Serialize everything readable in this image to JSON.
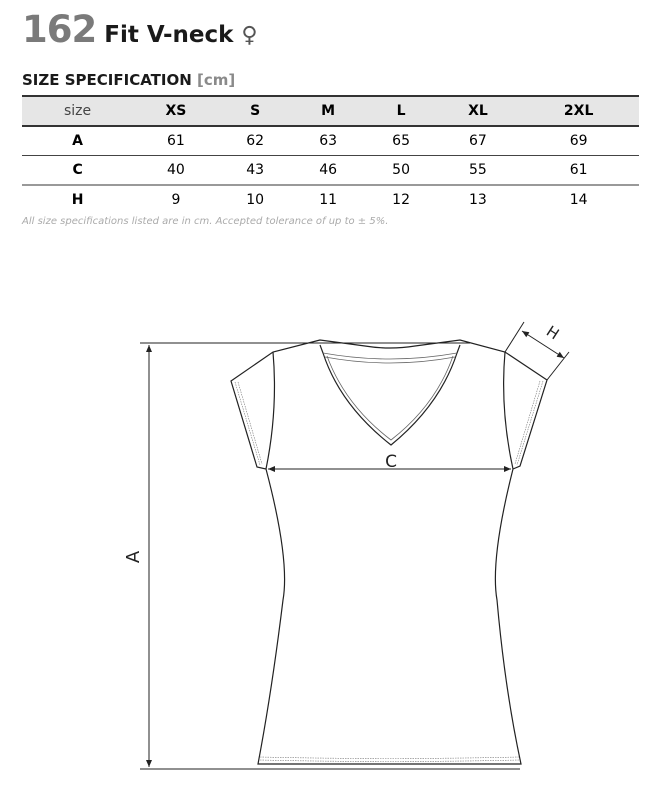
{
  "header": {
    "number": "162",
    "name": "Fit V-neck",
    "gender_symbol": "♀"
  },
  "spec": {
    "title": "SIZE SPECIFICATION",
    "unit": "[cm]"
  },
  "table": {
    "columns": [
      "size",
      "XS",
      "S",
      "M",
      "L",
      "XL",
      "2XL"
    ],
    "rows": [
      {
        "label": "A",
        "values": [
          "61",
          "62",
          "63",
          "65",
          "67",
          "69"
        ]
      },
      {
        "label": "C",
        "values": [
          "40",
          "43",
          "46",
          "50",
          "55",
          "61"
        ]
      },
      {
        "label": "H",
        "values": [
          "9",
          "10",
          "11",
          "12",
          "13",
          "14"
        ]
      }
    ]
  },
  "note": "All size specifications listed are in cm. Accepted tolerance of up to ± 5%.",
  "diagram": {
    "label_a": "A",
    "label_c": "C",
    "label_h": "H"
  }
}
